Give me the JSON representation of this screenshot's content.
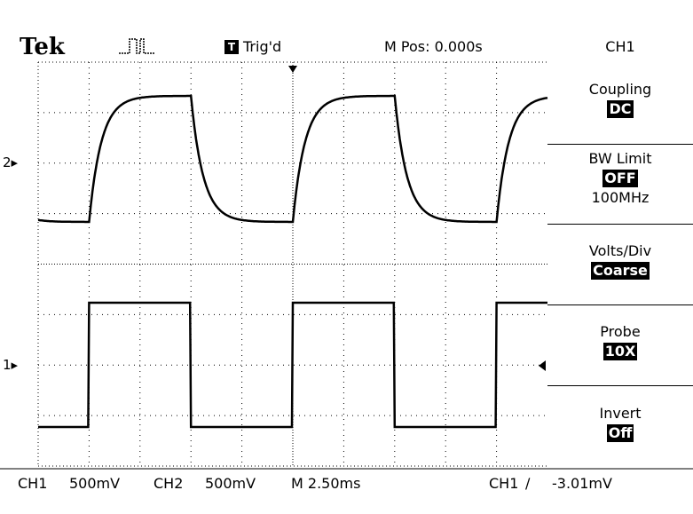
{
  "header": {
    "brand": "Tek",
    "trigger_mark": "T",
    "trigger_status": "Trig'd",
    "main_position": "M Pos: 0.000s"
  },
  "menu": {
    "title": "CH1",
    "items": [
      {
        "label": "Coupling",
        "value": "DC",
        "extra": ""
      },
      {
        "label": "BW Limit",
        "value": "OFF",
        "extra": "100MHz"
      },
      {
        "label": "Volts/Div",
        "value": "Coarse",
        "extra": ""
      },
      {
        "label": "Probe",
        "value": "10X",
        "extra": ""
      },
      {
        "label": "Invert",
        "value": "Off",
        "extra": ""
      }
    ]
  },
  "footer": {
    "ch1_label": "CH1",
    "ch1_scale": "500mV",
    "ch2_label": "CH2",
    "ch2_scale": "500mV",
    "timebase": "M 2.50ms",
    "trigger_source": "CH1",
    "trigger_slope_glyph": "∕",
    "trigger_level": "-3.01mV"
  },
  "markers": {
    "ch2": "2",
    "ch1": "1"
  },
  "waveforms": {
    "ch1": {
      "shape": "square",
      "low": 0.0,
      "high": 1.0
    },
    "ch2": {
      "shape": "rc-charge",
      "low": 0.0,
      "high": 1.0
    }
  }
}
